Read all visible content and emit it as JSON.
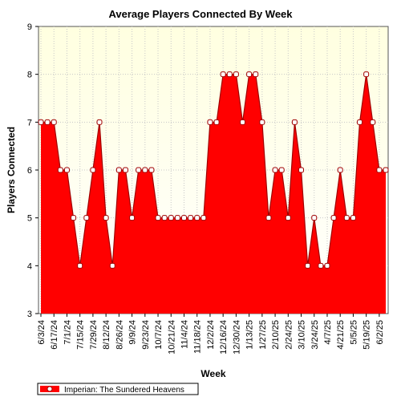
{
  "chart_data": {
    "type": "area",
    "title": "Average Players Connected By Week",
    "xlabel": "Week",
    "ylabel": "Players Connected",
    "ylim": [
      3,
      9
    ],
    "y_ticks": [
      "3",
      "4",
      "5",
      "6",
      "7",
      "8",
      "9"
    ],
    "x_tick_labels": [
      "6/3/24",
      "6/17/24",
      "7/1/24",
      "7/15/24",
      "7/29/24",
      "8/12/24",
      "8/26/24",
      "9/9/24",
      "9/23/24",
      "10/7/24",
      "10/21/24",
      "11/4/24",
      "11/18/24",
      "12/2/24",
      "12/16/24",
      "12/30/24",
      "1/13/25",
      "1/27/25",
      "2/10/25",
      "2/24/25",
      "3/10/25",
      "3/24/25",
      "4/7/25",
      "4/21/25",
      "5/5/25",
      "5/19/25",
      "6/2/25"
    ],
    "grid": true,
    "legend_position": "bottom-left",
    "series": [
      {
        "name": "Imperian: The Sundered Heavens",
        "color": "#ff0000",
        "values": [
          7,
          7,
          7,
          6,
          6,
          5,
          4,
          5,
          6,
          7,
          5,
          4,
          6,
          6,
          5,
          6,
          6,
          6,
          5,
          5,
          5,
          5,
          5,
          5,
          5,
          5,
          7,
          7,
          8,
          8,
          8,
          7,
          8,
          8,
          7,
          5,
          6,
          6,
          5,
          7,
          6,
          4,
          5,
          4,
          4,
          5,
          6,
          5,
          5,
          7,
          8,
          7,
          6,
          6
        ]
      }
    ],
    "colors": {
      "plot_background_top": "#ffffe0",
      "plot_background_bottom": "#ffffff",
      "area_fill": "#ff0000",
      "line": "#a00000",
      "marker_fill": "#ffffff",
      "marker_stroke": "#a00000",
      "grid": "#c8c8c8"
    }
  }
}
